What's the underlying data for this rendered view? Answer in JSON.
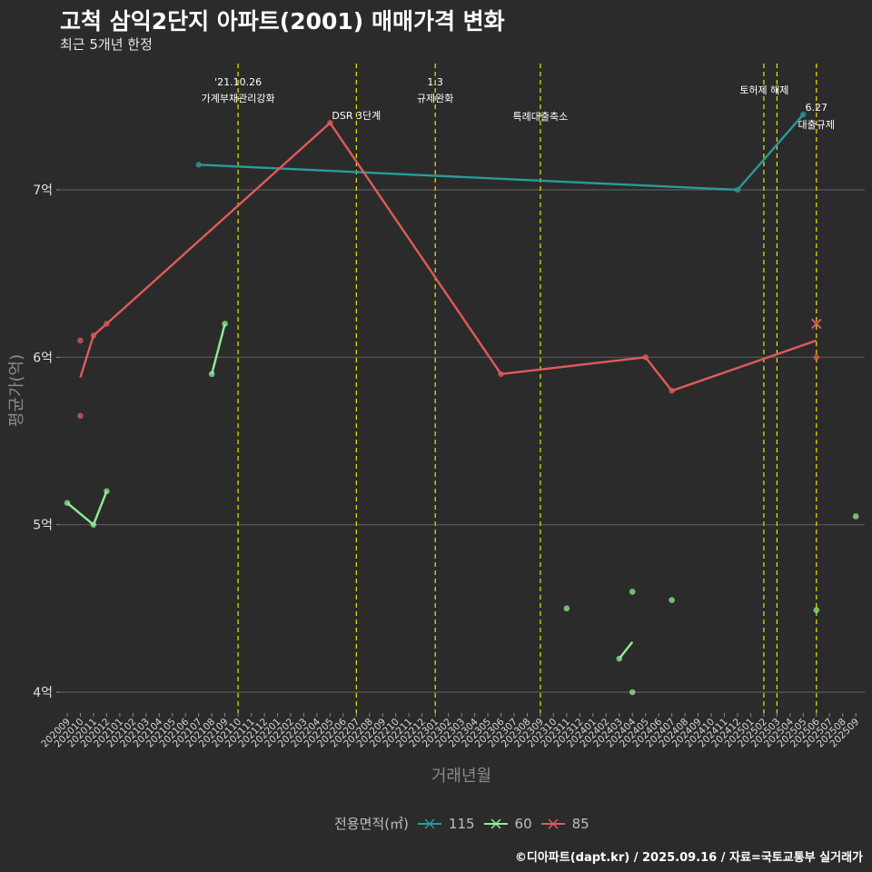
{
  "header": {
    "title": "고척 삼익2단지 아파트(2001) 매매가격 변화",
    "subtitle": "최근 5개년 한정"
  },
  "caption": "©디아파트(dapt.kr) / 2025.09.16 / 자료=국토교통부 실거래가",
  "legend": {
    "title": "전용면적(㎡)",
    "items": [
      {
        "label": "115",
        "color": "#2a9a9a"
      },
      {
        "label": "60",
        "color": "#90ee90"
      },
      {
        "label": "85",
        "color": "#e05a5a"
      }
    ]
  },
  "chart_data": {
    "type": "line",
    "title": "고척 삼익2단지 아파트(2001) 매매가격 변화",
    "xlabel": "거래년월",
    "ylabel": "평균가(억)",
    "ylim": [
      3.85,
      7.75
    ],
    "yticks": [
      4,
      5,
      6,
      7
    ],
    "ytick_labels": [
      "4억",
      "5억",
      "6억",
      "7억"
    ],
    "x": [
      "202009",
      "202010",
      "202011",
      "202012",
      "202101",
      "202102",
      "202103",
      "202104",
      "202105",
      "202106",
      "202107",
      "202108",
      "202109",
      "202110",
      "202111",
      "202112",
      "202201",
      "202202",
      "202203",
      "202204",
      "202205",
      "202206",
      "202207",
      "202208",
      "202209",
      "202210",
      "202211",
      "202212",
      "202301",
      "202302",
      "202303",
      "202304",
      "202305",
      "202306",
      "202307",
      "202308",
      "202309",
      "202310",
      "202311",
      "202312",
      "202401",
      "202402",
      "202403",
      "202404",
      "202405",
      "202406",
      "202407",
      "202408",
      "202409",
      "202410",
      "202411",
      "202412",
      "202501",
      "202502",
      "202503",
      "202504",
      "202505",
      "202506",
      "202507",
      "202508",
      "202509"
    ],
    "series": [
      {
        "name": "115",
        "color": "#2a9a9a",
        "line": [
          [
            "202107",
            7.15
          ],
          [
            "202412",
            7.0
          ],
          [
            "202505",
            7.45
          ]
        ],
        "points": [
          [
            "202107",
            7.15
          ],
          [
            "202412",
            7.0
          ],
          [
            "202505",
            7.45
          ]
        ]
      },
      {
        "name": "60",
        "color": "#90ee90",
        "line": [
          [
            "202009",
            5.13
          ],
          [
            "202011",
            5.0
          ],
          [
            "202012",
            5.2
          ]
        ],
        "line2": [
          [
            "202108",
            5.9
          ],
          [
            "202109",
            6.2
          ]
        ],
        "line3": [
          [
            "202403",
            4.2
          ],
          [
            "202404",
            4.3
          ]
        ],
        "points": [
          [
            "202009",
            5.13
          ],
          [
            "202011",
            5.0
          ],
          [
            "202012",
            5.2
          ],
          [
            "202108",
            5.9
          ],
          [
            "202109",
            6.2
          ],
          [
            "202311",
            4.5
          ],
          [
            "202403",
            4.2
          ],
          [
            "202404",
            4.6
          ],
          [
            "202404",
            4.0
          ],
          [
            "202407",
            4.55
          ],
          [
            "202506",
            4.49
          ],
          [
            "202509",
            5.05
          ]
        ]
      },
      {
        "name": "85",
        "color": "#e05a5a",
        "line": [
          [
            "202010",
            5.88
          ],
          [
            "202011",
            6.13
          ],
          [
            "202012",
            6.2
          ],
          [
            "202205",
            7.4
          ],
          [
            "202306",
            5.9
          ],
          [
            "202405",
            6.0
          ],
          [
            "202407",
            5.8
          ],
          [
            "202506",
            6.1
          ]
        ],
        "points": [
          [
            "202010",
            6.1
          ],
          [
            "202010",
            5.65
          ],
          [
            "202011",
            6.13
          ],
          [
            "202012",
            6.2
          ],
          [
            "202205",
            7.4
          ],
          [
            "202306",
            5.9
          ],
          [
            "202405",
            6.0
          ],
          [
            "202407",
            5.8
          ],
          [
            "202506",
            6.0
          ]
        ],
        "highlight": [
          "202506",
          6.2
        ]
      }
    ],
    "events": [
      {
        "x": "202110",
        "label1": "'21.10.26",
        "label2": "가계부채관리강화"
      },
      {
        "x": "202207",
        "label1": "",
        "label2": "DSR 3단계"
      },
      {
        "x": "202301",
        "label1": "1.3",
        "label2": "규제완화"
      },
      {
        "x": "202309",
        "label1": "",
        "label2": "특례대출축소"
      },
      {
        "x": "202502",
        "label1": "",
        "label2": ""
      },
      {
        "x": "202503",
        "label1": "",
        "label2": "토허제 해제"
      },
      {
        "x": "202506",
        "label1": "6.27",
        "label2": "대출규제"
      }
    ]
  }
}
